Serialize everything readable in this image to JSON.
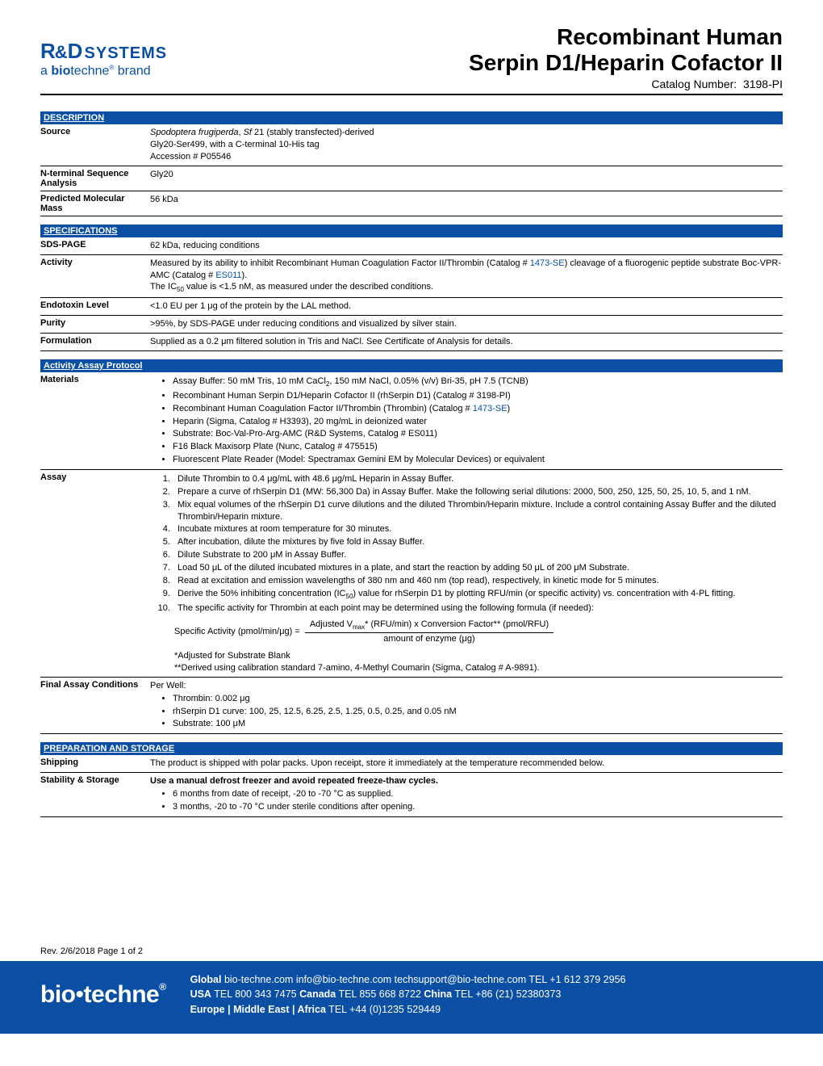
{
  "header": {
    "logo_main1": "R",
    "logo_main2": "D",
    "logo_systems": "SYSTEMS",
    "logo_sub": "a biotechne brand",
    "title_line1": "Recombinant Human",
    "title_line2": "Serpin D1/Heparin Cofactor II",
    "catalog_label": "Catalog Number:",
    "catalog_number": "3198-PI"
  },
  "description": {
    "header": "DESCRIPTION",
    "rows": [
      {
        "label": "Source",
        "value": "<span class='italic'>Spodoptera frugiperda</span>, <span class='italic'>Sf</span> 21 (stably transfected)-derived<br>Gly20-Ser499, with a C-terminal 10-His tag<br>Accession # P05546"
      },
      {
        "label": "N-terminal Sequence Analysis",
        "value": "Gly20"
      },
      {
        "label": "Predicted Molecular Mass",
        "value": "56 kDa"
      }
    ]
  },
  "specifications": {
    "header": "SPECIFICATIONS",
    "rows": [
      {
        "label": "SDS-PAGE",
        "value": "62 kDa, reducing conditions"
      },
      {
        "label": "Activity",
        "value": "Measured by its ability to inhibit Recombinant Human Coagulation Factor II/Thrombin (Catalog # <span class='link'>1473-SE</span>) cleavage of a fluorogenic peptide substrate Boc-VPR-AMC (Catalog # <span class='link'>ES011</span>).<br>The IC<span class='sub'>50</span> value is &lt;1.5 nM, as measured under the described conditions."
      },
      {
        "label": "Endotoxin Level",
        "value": "&lt;1.0 EU per 1 μg of the protein by the LAL method."
      },
      {
        "label": "Purity",
        "value": "&gt;95%, by SDS-PAGE under reducing conditions and visualized by silver stain."
      },
      {
        "label": "Formulation",
        "value": "Supplied as a 0.2 μm filtered solution in Tris and NaCl. See Certificate of Analysis for details."
      }
    ]
  },
  "assay_protocol": {
    "header": "Activity Assay Protocol",
    "materials_label": "Materials",
    "materials": [
      "Assay Buffer: 50 mM Tris, 10 mM CaCl<span class='sub'>2</span>, 150 mM NaCl, 0.05% (v/v) Bri-35, pH 7.5 (TCNB)",
      "Recombinant Human Serpin D1/Heparin Cofactor II (rhSerpin D1) (Catalog # 3198-PI)",
      "Recombinant Human Coagulation Factor II/Thrombin (Thrombin) (Catalog # <span class='link'>1473-SE</span>)",
      "Heparin (Sigma, Catalog # H3393), 20 mg/mL in deionized water",
      "Substrate: Boc-Val-Pro-Arg-AMC (R&D Systems, Catalog # ES011)",
      "F16 Black Maxisorp Plate (Nunc, Catalog # 475515)",
      "Fluorescent Plate Reader (Model: Spectramax Gemini EM by Molecular Devices) or equivalent"
    ],
    "assay_label": "Assay",
    "assay_steps": [
      "Dilute Thrombin to 0.4 μg/mL with 48.6 μg/mL Heparin in Assay Buffer.",
      "Prepare a curve of rhSerpin D1 (MW: 56,300 Da) in Assay Buffer. Make the following serial dilutions: 2000, 500, 250, 125, 50, 25, 10, 5, and 1 nM.",
      "Mix equal volumes of the rhSerpin D1 curve dilutions and the diluted Thrombin/Heparin mixture. Include a control containing Assay Buffer and the diluted Thrombin/Heparin mixture.",
      "Incubate mixtures at room temperature for 30 minutes.",
      "After incubation, dilute the mixtures by five fold in Assay Buffer.",
      "Dilute Substrate to 200 μM in Assay Buffer.",
      "Load 50 μL of the diluted incubated mixtures in a plate, and start the reaction by adding 50 μL of 200 μM Substrate.",
      "Read at excitation and emission wavelengths of 380 nm and 460 nm (top read), respectively, in kinetic mode for 5 minutes.",
      "Derive the 50% inhibiting concentration (IC<span class='sub'>50</span>) value for rhSerpin D1 by plotting RFU/min (or specific activity) vs. concentration with 4-PL fitting.",
      "The specific activity for Thrombin at each point may be determined using the following formula (if needed):"
    ],
    "formula_left": "Specific Activity (pmol/min/μg) =",
    "formula_num": "Adjusted V<span class='sub'>max</span>* (RFU/min) x Conversion Factor** (pmol/RFU)",
    "formula_den": "amount of enzyme (μg)",
    "note1": "*Adjusted for Substrate Blank",
    "note2": "**Derived using calibration standard 7-amino, 4-Methyl Coumarin (Sigma, Catalog # A-9891).",
    "final_label": "Final Assay Conditions",
    "final_intro": "Per Well:",
    "final_items": [
      "Thrombin: 0.002 μg",
      "rhSerpin D1 curve: 100, 25, 12.5, 6.25, 2.5, 1.25, 0.5, 0.25, and 0.05 nM",
      "Substrate: 100 μM"
    ]
  },
  "prep_storage": {
    "header": "PREPARATION AND STORAGE",
    "shipping_label": "Shipping",
    "shipping_value": "The product is shipped with polar packs. Upon receipt, store it immediately at the temperature recommended below.",
    "stability_label": "Stability & Storage",
    "stability_intro": "Use a manual defrost freezer and avoid repeated freeze-thaw cycles.",
    "stability_items": [
      "6 months from date of receipt, -20 to -70 °C as supplied.",
      "3 months, -20 to -70 °C under sterile conditions after opening."
    ]
  },
  "rev": "Rev. 2/6/2018 Page 1 of 2",
  "footer": {
    "logo": "biotechne",
    "line1": "<span class='bold'>Global</span> bio-techne.com  info@bio-techne.com  techsupport@bio-techne.com  TEL +1 612 379 2956",
    "line2": "<span class='bold'>USA</span> TEL 800 343 7475   <span class='bold'>Canada</span>  TEL 855 668 8722   <span class='bold'>China</span>  TEL +86 (21) 52380373",
    "line3": "<span class='bold'>Europe | Middle East | Africa</span>  TEL +44 (0)1235 529449"
  }
}
